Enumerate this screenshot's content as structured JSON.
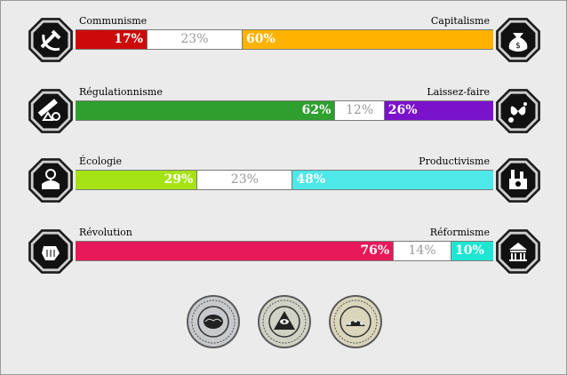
{
  "axes": [
    {
      "left_label": "Communisme",
      "right_label": "Capitalisme",
      "left": {
        "value": 17,
        "text": "17%",
        "color": "#cc0a0a"
      },
      "neutral": {
        "value": 23,
        "text": "23%"
      },
      "right": {
        "value": 60,
        "text": "60%",
        "color": "#ffb300"
      },
      "left_icon": "hammer-sickle-icon",
      "right_icon": "money-bag-icon"
    },
    {
      "left_label": "Régulationnisme",
      "right_label": "Laissez-faire",
      "left": {
        "value": 62,
        "text": "62%",
        "color": "#2f9f2f"
      },
      "neutral": {
        "value": 12,
        "text": "12%"
      },
      "right": {
        "value": 26,
        "text": "26%",
        "color": "#7a12cc"
      },
      "left_icon": "ruler-shapes-icon",
      "right_icon": "butterflies-icon"
    },
    {
      "left_label": "Écologie",
      "right_label": "Productivisme",
      "left": {
        "value": 29,
        "text": "29%",
        "color": "#a6e314"
      },
      "neutral": {
        "value": 23,
        "text": "23%"
      },
      "right": {
        "value": 48,
        "text": "48%",
        "color": "#4fe8e8"
      },
      "left_icon": "flower-hand-icon",
      "right_icon": "factory-icon"
    },
    {
      "left_label": "Révolution",
      "right_label": "Réformisme",
      "left": {
        "value": 76,
        "text": "76%",
        "color": "#e8195a"
      },
      "neutral": {
        "value": 14,
        "text": "14%"
      },
      "right": {
        "value": 10,
        "text": "10%",
        "color": "#1ee6d2"
      },
      "left_icon": "fist-icon",
      "right_icon": "parliament-icon"
    }
  ],
  "seals": [
    {
      "icon": "brain-seal-icon",
      "color": "#c7c9cc"
    },
    {
      "icon": "eye-pyramid-seal-icon",
      "color": "#cfd2c4"
    },
    {
      "icon": "crowd-seal-icon",
      "color": "#d9d6bc"
    }
  ]
}
